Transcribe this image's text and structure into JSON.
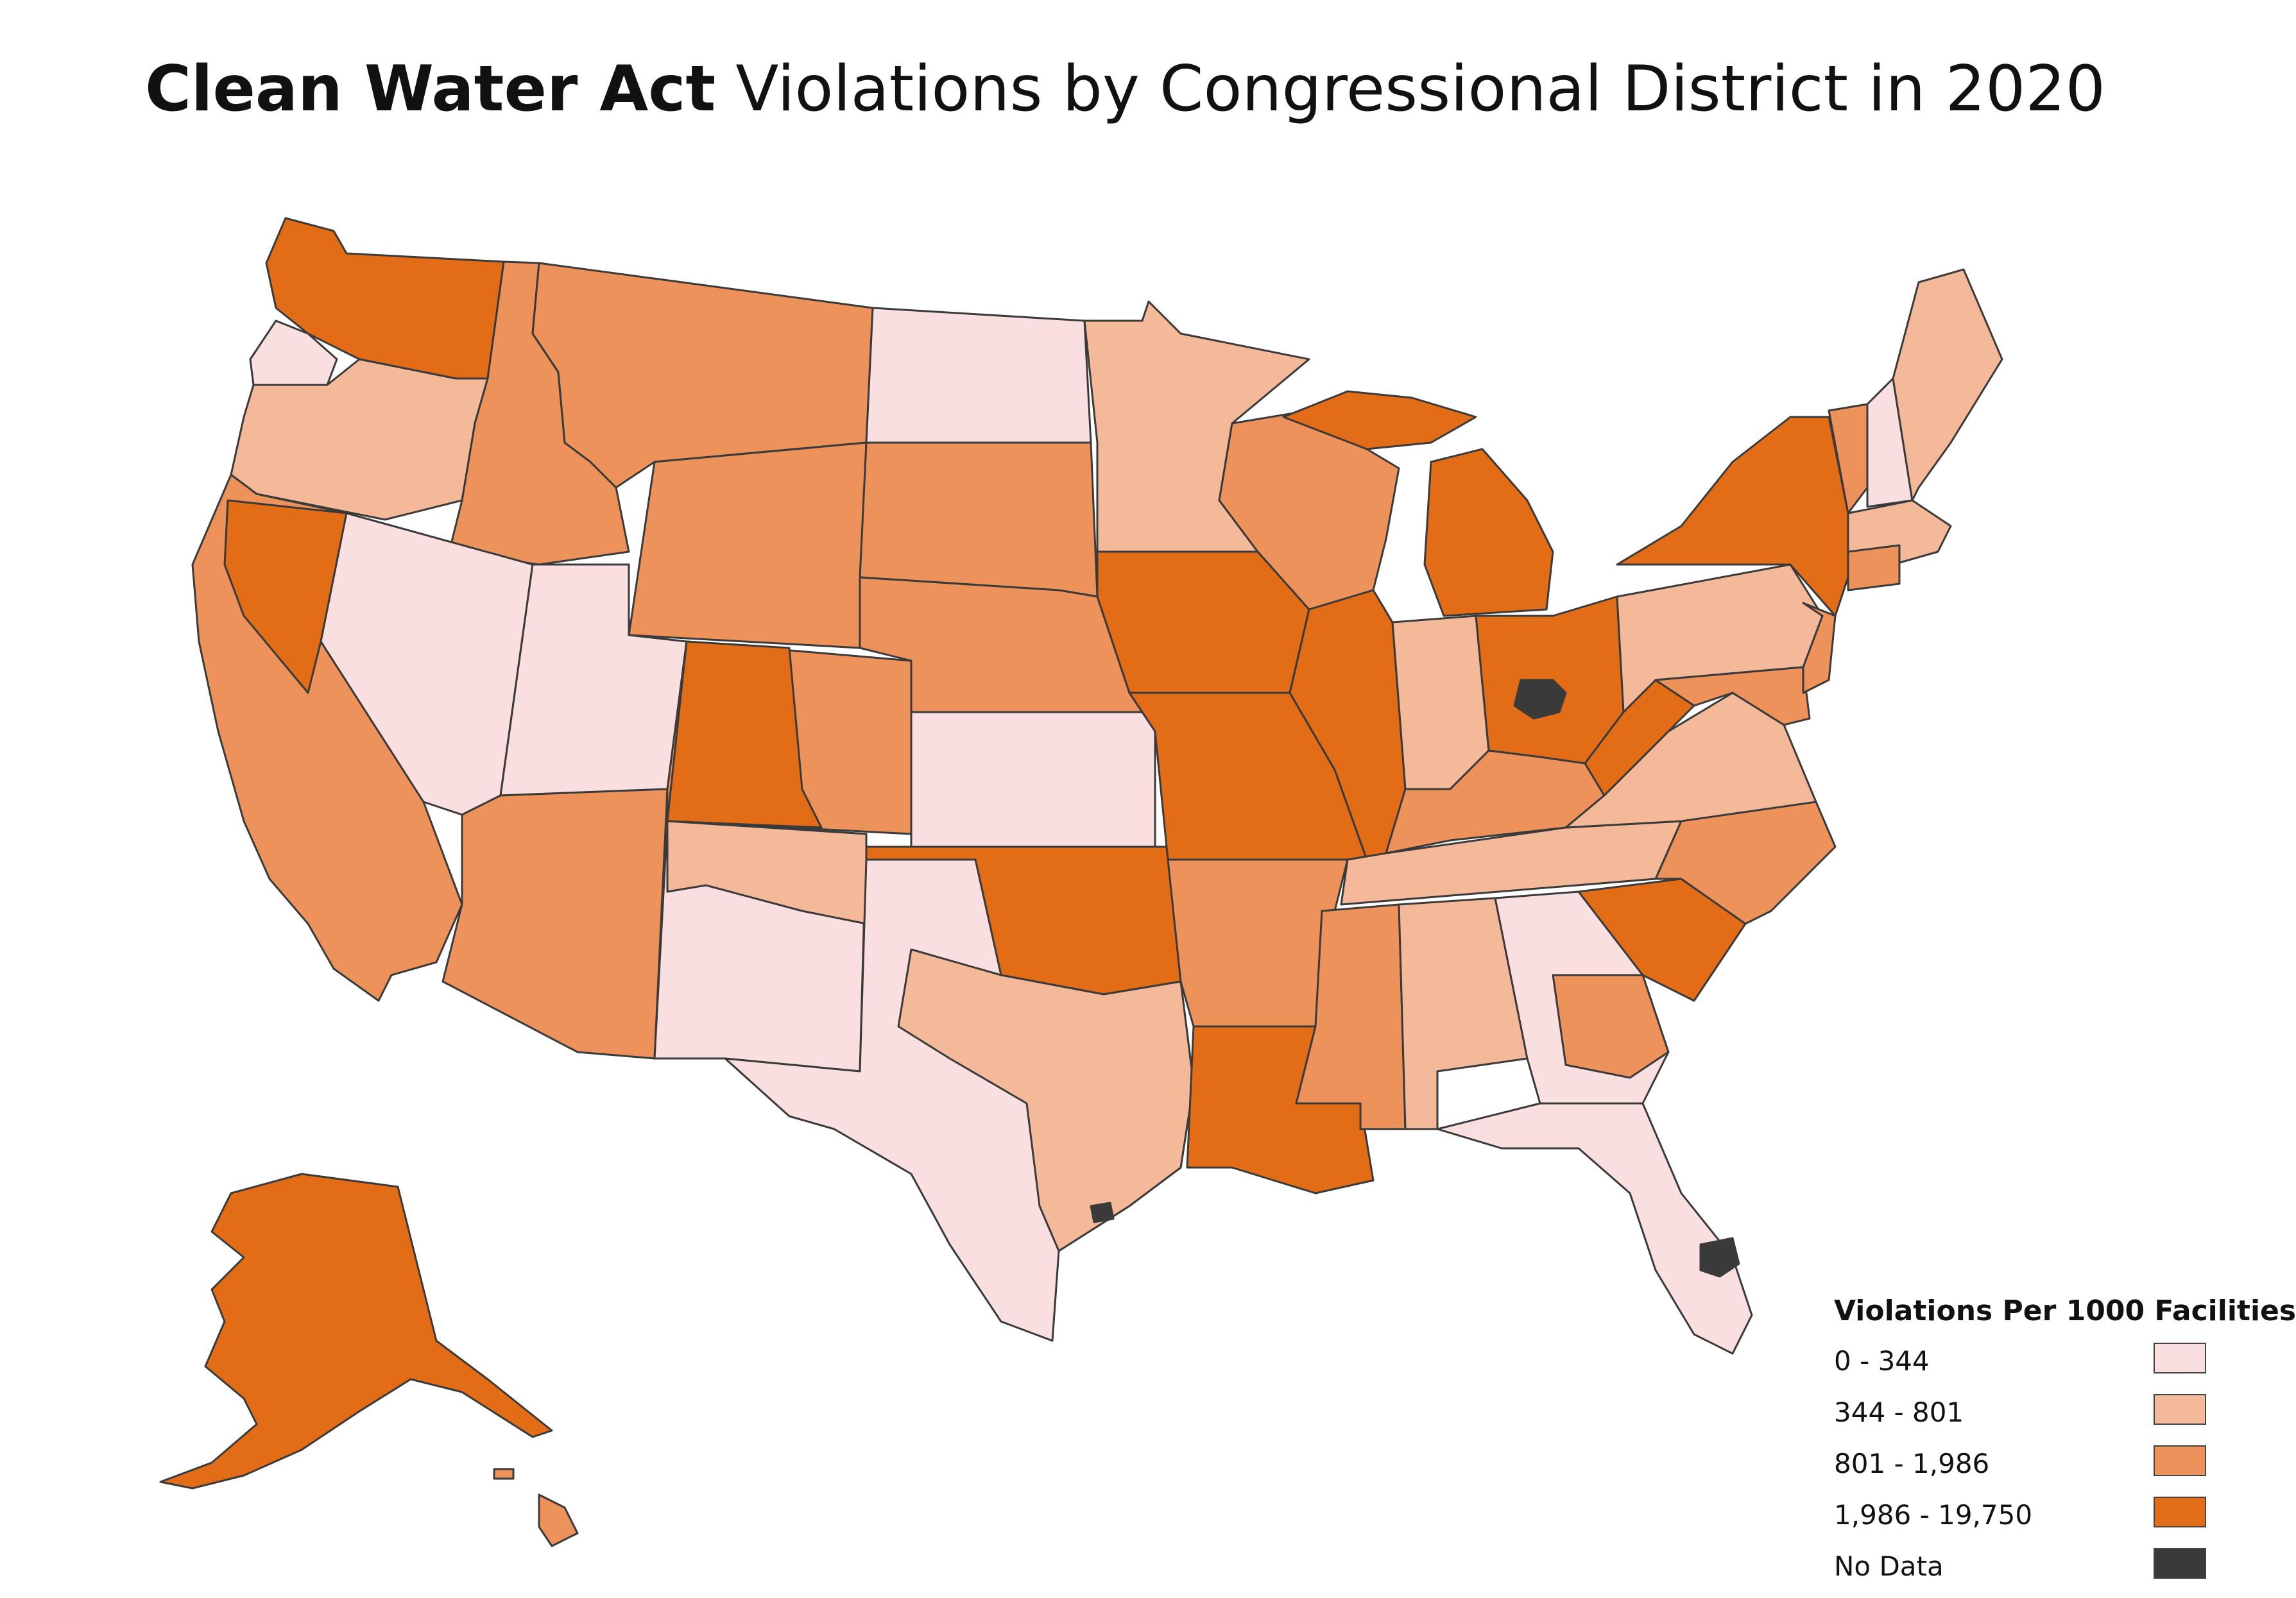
{
  "title": {
    "bold": "Clean Water Act",
    "rest": "Violations by Congressional District in 2020"
  },
  "legend": {
    "title": "Violations Per 1000 Facilities",
    "items": [
      {
        "label": "0 - 344",
        "color": "#fadfe0"
      },
      {
        "label": "344 - 801",
        "color": "#f4b999"
      },
      {
        "label": "801 - 1,986",
        "color": "#ec925a"
      },
      {
        "label": "1,986 - 19,750",
        "color": "#e36c17"
      },
      {
        "label": "No Data",
        "color": "#3a3a3a"
      }
    ]
  },
  "colors": {
    "border": "#3a3a3a",
    "background": "#ffffff"
  }
}
